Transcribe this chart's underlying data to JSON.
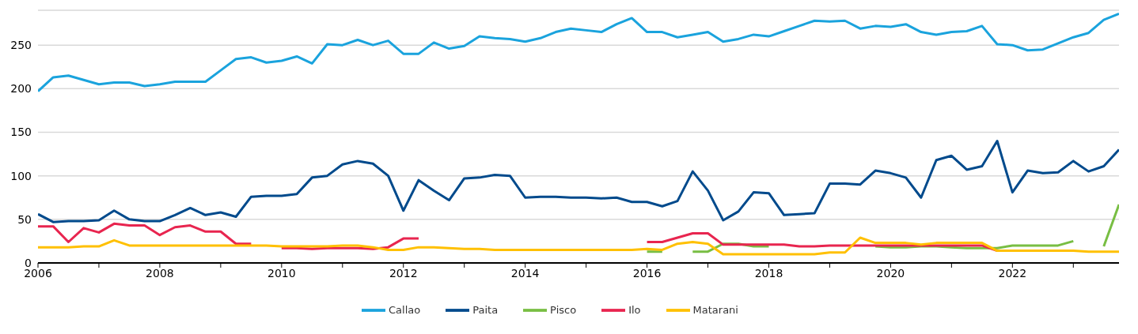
{
  "chart_data": {
    "type": "line",
    "x": [
      2006,
      2006.25,
      2006.5,
      2006.75,
      2007,
      2007.25,
      2007.5,
      2007.75,
      2008,
      2008.25,
      2008.5,
      2008.75,
      2009,
      2009.25,
      2009.5,
      2009.75,
      2010,
      2010.25,
      2010.5,
      2010.75,
      2011,
      2011.25,
      2011.5,
      2011.75,
      2012,
      2012.25,
      2012.5,
      2012.75,
      2013,
      2013.25,
      2013.5,
      2013.75,
      2014,
      2014.25,
      2014.5,
      2014.75,
      2015,
      2015.25,
      2015.5,
      2015.75,
      2016,
      2016.25,
      2016.5,
      2016.75,
      2017,
      2017.25,
      2017.5,
      2017.75,
      2018,
      2018.25,
      2018.5,
      2018.75,
      2019,
      2019.25,
      2019.5,
      2019.75,
      2020,
      2020.25,
      2020.5,
      2020.75,
      2021,
      2021.25,
      2021.5,
      2021.75,
      2022,
      2022.25,
      2022.5,
      2022.75,
      2023,
      2023.25,
      2023.5,
      2023.75
    ],
    "series": [
      {
        "name": "Callao",
        "color": "#1aa3dd",
        "values": [
          197,
          213,
          215,
          210,
          205,
          207,
          207,
          203,
          205,
          208,
          208,
          208,
          221,
          234,
          236,
          230,
          232,
          237,
          229,
          251,
          250,
          256,
          250,
          255,
          240,
          240,
          253,
          246,
          249,
          260,
          258,
          257,
          254,
          258,
          265,
          269,
          267,
          265,
          274,
          281,
          265,
          265,
          259,
          262,
          265,
          254,
          257,
          262,
          260,
          266,
          272,
          278,
          277,
          278,
          269,
          272,
          271,
          274,
          265,
          262,
          265,
          266,
          272,
          251,
          250,
          244,
          245,
          252,
          259,
          264,
          279,
          286
        ]
      },
      {
        "name": "Paita",
        "color": "#004a8c",
        "values": [
          56,
          47,
          48,
          48,
          49,
          60,
          50,
          48,
          48,
          55,
          63,
          55,
          58,
          53,
          76,
          77,
          77,
          79,
          98,
          100,
          113,
          117,
          114,
          100,
          60,
          95,
          83,
          72,
          97,
          98,
          101,
          100,
          75,
          76,
          76,
          75,
          75,
          74,
          75,
          70,
          70,
          65,
          71,
          105,
          83,
          49,
          59,
          81,
          80,
          55,
          56,
          57,
          91,
          91,
          90,
          106,
          103,
          98,
          75,
          118,
          123,
          107,
          111,
          140,
          81,
          106,
          103,
          104,
          117,
          105,
          111,
          130
        ]
      },
      {
        "name": "Pisco",
        "color": "#78be43",
        "values": [
          null,
          null,
          null,
          null,
          null,
          null,
          null,
          null,
          null,
          null,
          null,
          null,
          null,
          null,
          null,
          null,
          null,
          null,
          null,
          null,
          null,
          null,
          null,
          null,
          null,
          null,
          null,
          null,
          null,
          null,
          null,
          null,
          null,
          null,
          null,
          null,
          null,
          null,
          null,
          null,
          13,
          13,
          null,
          13,
          13,
          22,
          22,
          19,
          19,
          null,
          null,
          null,
          null,
          null,
          null,
          19,
          18,
          18,
          19,
          19,
          18,
          17,
          17,
          17,
          20,
          20,
          20,
          20,
          25,
          null,
          19,
          67
        ]
      },
      {
        "name": "Ilo",
        "color": "#e8254f",
        "values": [
          42,
          42,
          24,
          40,
          35,
          45,
          43,
          43,
          32,
          41,
          43,
          36,
          36,
          22,
          22,
          null,
          17,
          17,
          16,
          17,
          17,
          17,
          16,
          18,
          28,
          28,
          null,
          null,
          null,
          null,
          null,
          null,
          null,
          null,
          null,
          null,
          null,
          null,
          null,
          null,
          24,
          24,
          29,
          34,
          34,
          21,
          21,
          21,
          21,
          21,
          19,
          19,
          20,
          20,
          20,
          20,
          20,
          20,
          20,
          20,
          20,
          20,
          20,
          14,
          null,
          null,
          null,
          null,
          null,
          null,
          null,
          null
        ]
      },
      {
        "name": "Matarani",
        "color": "#ffc000",
        "values": [
          18,
          18,
          18,
          19,
          19,
          26,
          20,
          20,
          20,
          20,
          20,
          20,
          20,
          20,
          20,
          20,
          19,
          19,
          19,
          19,
          20,
          20,
          18,
          15,
          15,
          18,
          18,
          17,
          16,
          16,
          15,
          15,
          15,
          15,
          15,
          15,
          15,
          15,
          15,
          15,
          16,
          15,
          22,
          24,
          22,
          10,
          10,
          10,
          10,
          10,
          10,
          10,
          12,
          12,
          29,
          23,
          23,
          23,
          21,
          23,
          23,
          23,
          23,
          14,
          14,
          14,
          14,
          14,
          14,
          13,
          13,
          13
        ]
      }
    ],
    "xlim": [
      2006,
      2023.75
    ],
    "xticks": [
      2006,
      {
        "value": 2007,
        "label": null
      },
      2008,
      {
        "value": 2009,
        "label": null
      },
      2010,
      {
        "value": 2011,
        "label": null
      },
      2012,
      {
        "value": 2013,
        "label": null
      },
      2014,
      {
        "value": 2015,
        "label": null
      },
      2016,
      {
        "value": 2017,
        "label": null
      },
      2018,
      {
        "value": 2019,
        "label": null
      },
      2020,
      {
        "value": 2021,
        "label": null
      },
      2022,
      {
        "value": 2023,
        "label": null
      }
    ],
    "ylim": [
      0,
      290
    ],
    "yticks": [
      0,
      50,
      100,
      150,
      200,
      250
    ],
    "grid": "y",
    "legend": "bottom",
    "marker": "none",
    "line_style": "solid"
  }
}
